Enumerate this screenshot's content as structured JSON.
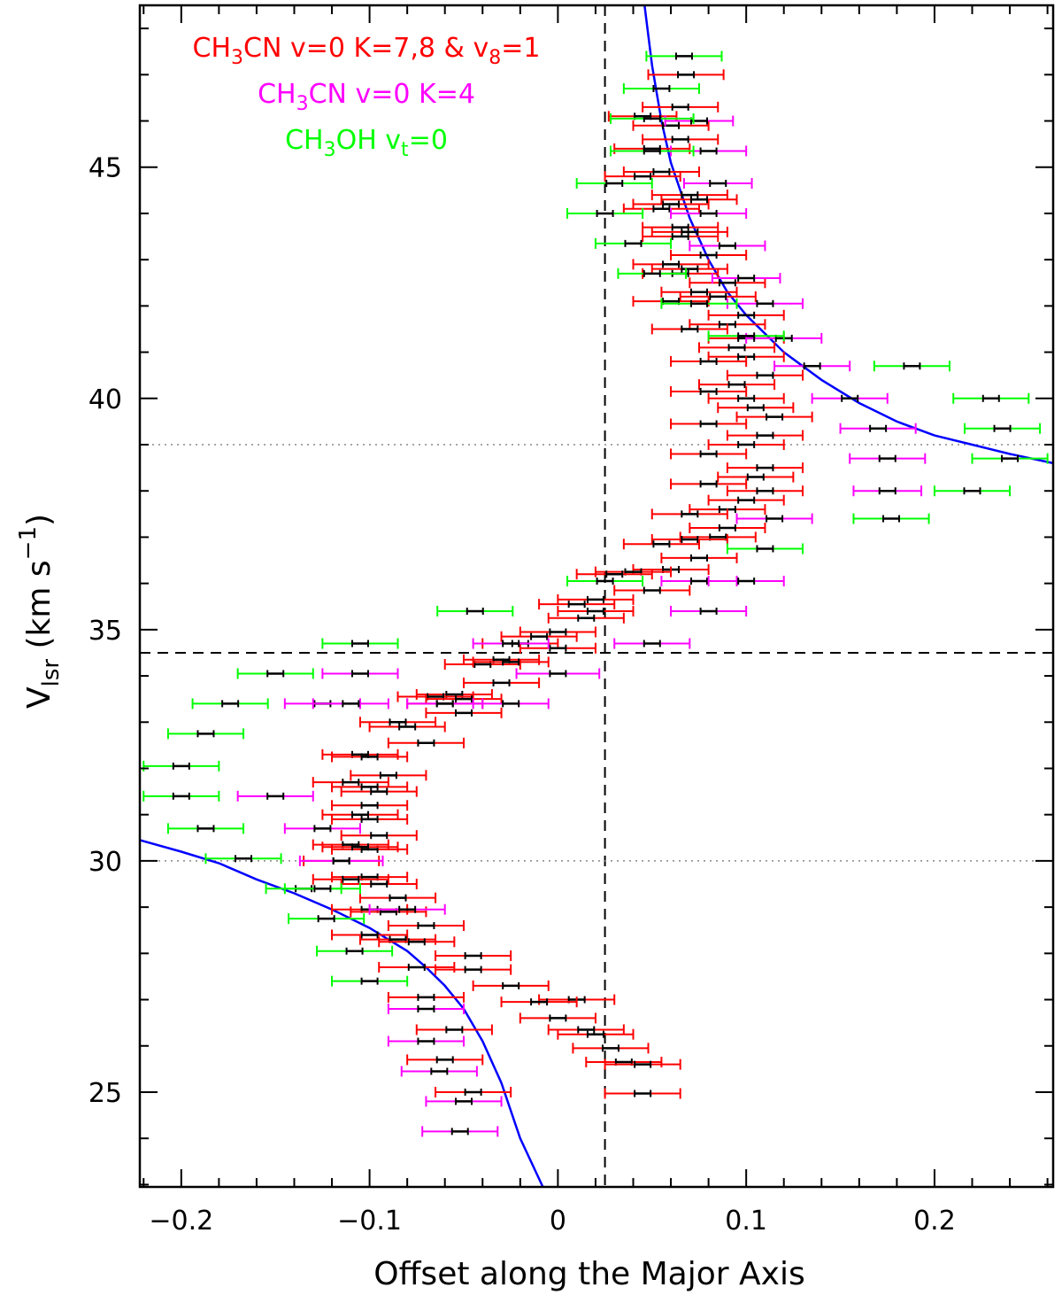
{
  "chart_data": {
    "type": "scatter",
    "xlabel": "Offset along the Major Axis",
    "ylabel": {
      "main": "V",
      "sub": "lsr",
      "units_open": " (km s",
      "units_exp": "−1",
      "units_close": ")"
    },
    "xlim": [
      -0.222,
      0.263
    ],
    "ylim": [
      22.95,
      48.5
    ],
    "xticks": [
      -0.2,
      -0.1,
      0,
      0.1,
      0.2
    ],
    "xtick_labels": [
      "−0.2",
      "−0.1",
      "0",
      "0.1",
      "0.2"
    ],
    "yticks": [
      25,
      30,
      35,
      40,
      45
    ],
    "ytick_labels": [
      "25",
      "30",
      "35",
      "40",
      "45"
    ],
    "grid": false,
    "reference_lines": {
      "vertical_dashed_x": 0.025,
      "horizontal_dashed_y": 34.5,
      "horizontal_dotted_y": [
        39.0,
        30.0
      ]
    },
    "legend_position": "top-left",
    "legend": [
      {
        "parts": [
          [
            "CH",
            "base"
          ],
          [
            "3",
            "sub"
          ],
          [
            "CN v=0 K=7,8 & v",
            "base"
          ],
          [
            "8",
            "sub"
          ],
          [
            "=1",
            "base"
          ]
        ],
        "color": "#ff0000"
      },
      {
        "parts": [
          [
            "CH",
            "base"
          ],
          [
            "3",
            "sub"
          ],
          [
            "CN v=0 K=4",
            "base"
          ]
        ],
        "color": "#ff00ff"
      },
      {
        "parts": [
          [
            "CH",
            "base"
          ],
          [
            "3",
            "sub"
          ],
          [
            "OH v",
            "base"
          ],
          [
            "t",
            "sub"
          ],
          [
            "=0",
            "base"
          ]
        ],
        "color": "#00ff00"
      }
    ],
    "curve_color": "#0000ff",
    "fit_curves": [
      {
        "name": "upper",
        "points": [
          [
            0.046,
            48.5
          ],
          [
            0.05,
            47.2
          ],
          [
            0.055,
            46.0
          ],
          [
            0.06,
            45.1
          ],
          [
            0.07,
            43.9
          ],
          [
            0.08,
            43.0
          ],
          [
            0.09,
            42.3
          ],
          [
            0.1,
            41.8
          ],
          [
            0.12,
            41.0
          ],
          [
            0.14,
            40.4
          ],
          [
            0.16,
            39.9
          ],
          [
            0.18,
            39.5
          ],
          [
            0.2,
            39.2
          ],
          [
            0.22,
            39.0
          ],
          [
            0.24,
            38.8
          ],
          [
            0.263,
            38.6
          ]
        ]
      },
      {
        "name": "lower",
        "points": [
          [
            -0.222,
            30.45
          ],
          [
            -0.2,
            30.2
          ],
          [
            -0.18,
            29.95
          ],
          [
            -0.16,
            29.6
          ],
          [
            -0.14,
            29.3
          ],
          [
            -0.12,
            28.95
          ],
          [
            -0.1,
            28.55
          ],
          [
            -0.09,
            28.3
          ],
          [
            -0.08,
            28.05
          ],
          [
            -0.07,
            27.7
          ],
          [
            -0.06,
            27.3
          ],
          [
            -0.05,
            26.8
          ],
          [
            -0.04,
            26.1
          ],
          [
            -0.03,
            25.2
          ],
          [
            -0.02,
            24.0
          ],
          [
            -0.008,
            22.95
          ]
        ]
      }
    ],
    "series": [
      {
        "name": "CH3CN v=0 K=7,8 & v8=1",
        "color": "#ff0000",
        "points": [
          [
            0.068,
            47.0,
            0.02
          ],
          [
            0.065,
            46.3,
            0.02
          ],
          [
            0.045,
            46.1,
            0.018
          ],
          [
            0.06,
            45.9,
            0.02
          ],
          [
            0.065,
            45.6,
            0.02
          ],
          [
            0.05,
            45.4,
            0.02
          ],
          [
            0.055,
            44.9,
            0.02
          ],
          [
            0.045,
            44.8,
            0.02
          ],
          [
            0.07,
            44.4,
            0.02
          ],
          [
            0.06,
            44.2,
            0.02
          ],
          [
            0.055,
            44.1,
            0.02
          ],
          [
            0.075,
            44.3,
            0.02
          ],
          [
            0.065,
            43.7,
            0.02
          ],
          [
            0.07,
            43.6,
            0.02
          ],
          [
            0.065,
            43.5,
            0.02
          ],
          [
            0.08,
            43.1,
            0.02
          ],
          [
            0.06,
            42.9,
            0.02
          ],
          [
            0.07,
            42.8,
            0.02
          ],
          [
            0.065,
            42.7,
            0.02
          ],
          [
            0.09,
            42.5,
            0.02
          ],
          [
            0.075,
            42.3,
            0.02
          ],
          [
            0.085,
            42.2,
            0.02
          ],
          [
            0.06,
            42.1,
            0.02
          ],
          [
            0.1,
            41.8,
            0.02
          ],
          [
            0.09,
            41.6,
            0.02
          ],
          [
            0.07,
            41.5,
            0.02
          ],
          [
            0.1,
            41.3,
            0.02
          ],
          [
            0.095,
            41.1,
            0.02
          ],
          [
            0.1,
            40.9,
            0.02
          ],
          [
            0.08,
            40.8,
            0.02
          ],
          [
            0.11,
            40.5,
            0.02
          ],
          [
            0.095,
            40.3,
            0.02
          ],
          [
            0.08,
            40.15,
            0.02
          ],
          [
            0.1,
            40.0,
            0.02
          ],
          [
            0.105,
            39.8,
            0.02
          ],
          [
            0.115,
            39.6,
            0.02
          ],
          [
            0.08,
            39.45,
            0.02
          ],
          [
            0.11,
            39.2,
            0.02
          ],
          [
            0.1,
            39.0,
            0.02
          ],
          [
            0.08,
            38.8,
            0.02
          ],
          [
            0.11,
            38.5,
            0.02
          ],
          [
            0.105,
            38.3,
            0.02
          ],
          [
            0.08,
            38.15,
            0.02
          ],
          [
            0.11,
            38.0,
            0.02
          ],
          [
            0.1,
            37.8,
            0.02
          ],
          [
            0.09,
            37.6,
            0.02
          ],
          [
            0.07,
            37.5,
            0.02
          ],
          [
            0.09,
            37.2,
            0.02
          ],
          [
            0.085,
            37.0,
            0.02
          ],
          [
            0.07,
            36.95,
            0.02
          ],
          [
            0.055,
            36.85,
            0.02
          ],
          [
            0.075,
            36.55,
            0.02
          ],
          [
            0.06,
            36.3,
            0.02
          ],
          [
            0.04,
            36.25,
            0.02
          ],
          [
            0.03,
            36.2,
            0.02
          ],
          [
            0.05,
            35.85,
            0.02
          ],
          [
            0.02,
            35.65,
            0.02
          ],
          [
            0.01,
            35.55,
            0.02
          ],
          [
            0.02,
            35.4,
            0.02
          ],
          [
            0.015,
            35.25,
            0.02
          ],
          [
            0.0,
            34.95,
            0.02
          ],
          [
            -0.01,
            34.85,
            0.02
          ],
          [
            -0.02,
            34.7,
            0.02
          ],
          [
            0.0,
            34.6,
            0.02
          ],
          [
            -0.03,
            34.35,
            0.02
          ],
          [
            -0.04,
            34.25,
            0.02
          ],
          [
            -0.025,
            34.3,
            0.02
          ],
          [
            -0.03,
            33.85,
            0.02
          ],
          [
            -0.055,
            33.6,
            0.02
          ],
          [
            -0.065,
            33.55,
            0.02
          ],
          [
            -0.05,
            33.5,
            0.02
          ],
          [
            -0.06,
            33.4,
            0.02
          ],
          [
            -0.05,
            33.2,
            0.02
          ],
          [
            -0.085,
            33.0,
            0.02
          ],
          [
            -0.08,
            32.9,
            0.02
          ],
          [
            -0.07,
            32.55,
            0.02
          ],
          [
            -0.105,
            32.3,
            0.02
          ],
          [
            -0.1,
            32.25,
            0.02
          ],
          [
            -0.09,
            31.85,
            0.02
          ],
          [
            -0.11,
            31.7,
            0.02
          ],
          [
            -0.1,
            31.6,
            0.02
          ],
          [
            -0.095,
            31.5,
            0.02
          ],
          [
            -0.1,
            31.2,
            0.02
          ],
          [
            -0.105,
            31.0,
            0.02
          ],
          [
            -0.1,
            30.9,
            0.02
          ],
          [
            -0.095,
            30.55,
            0.02
          ],
          [
            -0.11,
            30.35,
            0.02
          ],
          [
            -0.1,
            30.25,
            0.02
          ],
          [
            -0.105,
            30.3,
            0.02
          ],
          [
            -0.115,
            30.0,
            0.02
          ],
          [
            -0.1,
            29.65,
            0.02
          ],
          [
            -0.11,
            29.6,
            0.02
          ],
          [
            -0.095,
            29.5,
            0.02
          ],
          [
            -0.085,
            29.2,
            0.02
          ],
          [
            -0.1,
            28.95,
            0.02
          ],
          [
            -0.09,
            28.9,
            0.02
          ],
          [
            -0.07,
            28.6,
            0.02
          ],
          [
            -0.1,
            28.4,
            0.02
          ],
          [
            -0.085,
            28.3,
            0.02
          ],
          [
            -0.075,
            28.25,
            0.02
          ],
          [
            -0.045,
            27.95,
            0.02
          ],
          [
            -0.075,
            27.7,
            0.02
          ],
          [
            -0.045,
            27.65,
            0.02
          ],
          [
            -0.025,
            27.3,
            0.02
          ],
          [
            -0.07,
            27.05,
            0.02
          ],
          [
            0.01,
            27.0,
            0.02
          ],
          [
            -0.01,
            26.95,
            0.02
          ],
          [
            0.0,
            26.6,
            0.02
          ],
          [
            -0.055,
            26.35,
            0.02
          ],
          [
            0.015,
            26.35,
            0.02
          ],
          [
            0.02,
            26.25,
            0.02
          ],
          [
            0.028,
            25.95,
            0.02
          ],
          [
            -0.06,
            25.7,
            0.02
          ],
          [
            0.035,
            25.65,
            0.02
          ],
          [
            0.045,
            25.6,
            0.02
          ],
          [
            -0.045,
            25.0,
            0.02
          ],
          [
            0.045,
            24.97,
            0.02
          ]
        ]
      },
      {
        "name": "CH3CN v=0 K=4",
        "color": "#ff00ff",
        "points": [
          [
            0.075,
            46.0,
            0.018
          ],
          [
            0.08,
            45.35,
            0.02
          ],
          [
            0.085,
            44.65,
            0.018
          ],
          [
            0.08,
            44.0,
            0.02
          ],
          [
            0.09,
            43.3,
            0.02
          ],
          [
            0.1,
            42.6,
            0.018
          ],
          [
            0.11,
            42.05,
            0.02
          ],
          [
            0.12,
            41.3,
            0.02
          ],
          [
            0.135,
            40.7,
            0.02
          ],
          [
            0.155,
            40.0,
            0.02
          ],
          [
            0.17,
            39.35,
            0.02
          ],
          [
            0.175,
            38.7,
            0.02
          ],
          [
            0.175,
            38.0,
            0.018
          ],
          [
            0.115,
            37.4,
            0.02
          ],
          [
            0.075,
            36.05,
            0.02
          ],
          [
            0.1,
            36.05,
            0.02
          ],
          [
            0.08,
            35.4,
            0.02
          ],
          [
            0.05,
            34.7,
            0.02
          ],
          [
            0.0,
            34.05,
            0.022
          ],
          [
            -0.025,
            34.7,
            0.02
          ],
          [
            -0.025,
            33.4,
            0.02
          ],
          [
            -0.105,
            34.05,
            0.02
          ],
          [
            -0.125,
            33.4,
            0.02
          ],
          [
            -0.11,
            33.4,
            0.02
          ],
          [
            -0.06,
            33.4,
            0.02
          ],
          [
            -0.15,
            31.4,
            0.02
          ],
          [
            -0.125,
            30.7,
            0.02
          ],
          [
            -0.115,
            30.0,
            0.022
          ],
          [
            -0.08,
            28.95,
            0.02
          ],
          [
            -0.07,
            26.8,
            0.02
          ],
          [
            -0.07,
            26.1,
            0.02
          ],
          [
            -0.063,
            25.45,
            0.02
          ],
          [
            -0.05,
            24.8,
            0.02
          ],
          [
            -0.052,
            24.15,
            0.02
          ]
        ]
      },
      {
        "name": "CH3OH vt=0",
        "color": "#00ff00",
        "points": [
          [
            0.067,
            47.4,
            0.02
          ],
          [
            0.055,
            46.7,
            0.02
          ],
          [
            0.05,
            46.05,
            0.022
          ],
          [
            0.05,
            45.35,
            0.022
          ],
          [
            0.03,
            44.65,
            0.02
          ],
          [
            0.025,
            44.0,
            0.02
          ],
          [
            0.04,
            43.35,
            0.02
          ],
          [
            0.05,
            42.7,
            0.018
          ],
          [
            0.075,
            42.05,
            0.02
          ],
          [
            0.1,
            41.35,
            0.02
          ],
          [
            0.188,
            40.7,
            0.02
          ],
          [
            0.23,
            40.0,
            0.02
          ],
          [
            0.236,
            39.35,
            0.02
          ],
          [
            0.24,
            38.7,
            0.02
          ],
          [
            0.22,
            38.0,
            0.02
          ],
          [
            0.177,
            37.4,
            0.02
          ],
          [
            0.11,
            36.75,
            0.02
          ],
          [
            0.025,
            36.05,
            0.02
          ],
          [
            -0.044,
            35.4,
            0.02
          ],
          [
            -0.105,
            34.7,
            0.02
          ],
          [
            -0.15,
            34.05,
            0.02
          ],
          [
            -0.174,
            33.4,
            0.02
          ],
          [
            -0.187,
            32.75,
            0.02
          ],
          [
            -0.2,
            32.05,
            0.02
          ],
          [
            -0.2,
            31.4,
            0.02
          ],
          [
            -0.187,
            30.7,
            0.02
          ],
          [
            -0.167,
            30.05,
            0.02
          ],
          [
            -0.135,
            29.4,
            0.02
          ],
          [
            -0.123,
            28.75,
            0.02
          ],
          [
            -0.108,
            28.05,
            0.02
          ],
          [
            -0.1,
            27.4,
            0.02
          ],
          [
            -0.125,
            29.4,
            0.02
          ]
        ]
      }
    ]
  }
}
